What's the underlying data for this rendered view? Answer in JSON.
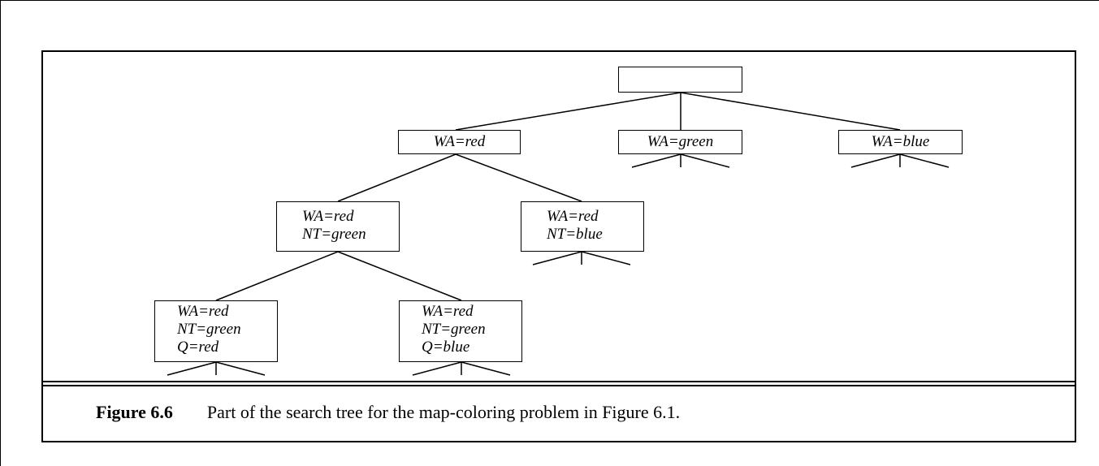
{
  "tree": {
    "root": {
      "lines": []
    },
    "level1": [
      {
        "id": "wa-red",
        "lines": [
          "WA=red"
        ],
        "expanded": true
      },
      {
        "id": "wa-green",
        "lines": [
          "WA=green"
        ],
        "expanded": false
      },
      {
        "id": "wa-blue",
        "lines": [
          "WA=blue"
        ],
        "expanded": false
      }
    ],
    "level2": [
      {
        "id": "wa-red-nt-green",
        "lines": [
          "WA=red",
          "NT=green"
        ],
        "expanded": true
      },
      {
        "id": "wa-red-nt-blue",
        "lines": [
          "WA=red",
          "NT=blue"
        ],
        "expanded": false
      }
    ],
    "level3": [
      {
        "id": "wa-red-nt-green-q-red",
        "lines": [
          "WA=red",
          "NT=green",
          "Q=red"
        ],
        "expanded": false
      },
      {
        "id": "wa-red-nt-green-q-blue",
        "lines": [
          "WA=red",
          "NT=green",
          "Q=blue"
        ],
        "expanded": false
      }
    ]
  },
  "caption": {
    "label": "Figure 6.6",
    "text": "Part of the search tree for the map-coloring problem in Figure 6.1."
  }
}
